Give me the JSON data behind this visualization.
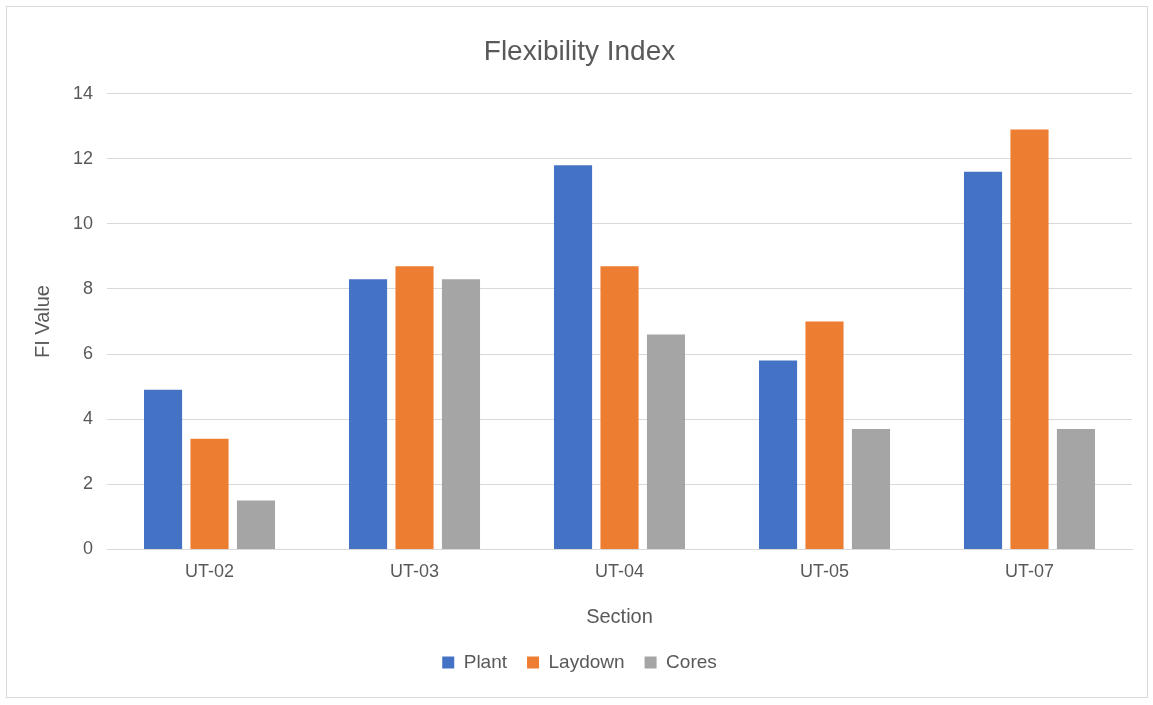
{
  "chart_data": {
    "type": "bar",
    "title": "Flexibility Index",
    "xlabel": "Section",
    "ylabel": "FI Value",
    "categories": [
      "UT-02",
      "UT-03",
      "UT-04",
      "UT-05",
      "UT-07"
    ],
    "series": [
      {
        "name": "Plant",
        "color": "#4472c4",
        "values": [
          4.9,
          8.3,
          11.8,
          5.8,
          11.6
        ]
      },
      {
        "name": "Laydown",
        "color": "#ed7d31",
        "values": [
          3.4,
          8.7,
          8.7,
          7.0,
          12.9
        ]
      },
      {
        "name": "Cores",
        "color": "#a5a5a5",
        "values": [
          1.5,
          8.3,
          6.6,
          3.7,
          3.7
        ]
      }
    ],
    "ylim": [
      0,
      14
    ],
    "yticks": [
      0,
      2,
      4,
      6,
      8,
      10,
      12,
      14
    ],
    "grid": "y",
    "legend": "bottom"
  }
}
